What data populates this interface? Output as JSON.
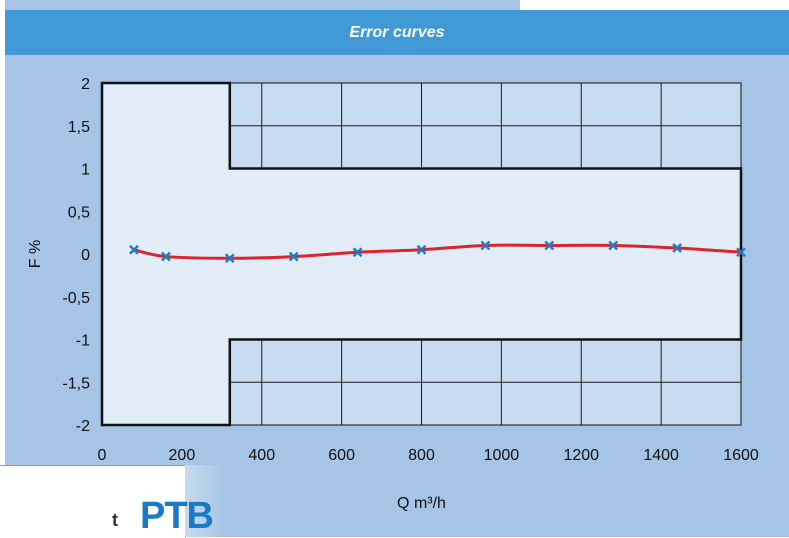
{
  "header": {
    "title": "Error curves"
  },
  "logo": {
    "text": "PTB",
    "cut_text": "t"
  },
  "colors": {
    "panel_bg": "#a5c4e6",
    "header_bg": "#4199d6",
    "plot_bg": "#c6dbf0",
    "tolerance_fill": "#e2ecf7",
    "curve": "#d9262c",
    "marker": "#1f7cc4"
  },
  "chart_data": {
    "type": "line",
    "title": "Error curves",
    "xlabel": "Q m³/h",
    "ylabel": "F %",
    "xlim": [
      0,
      1600
    ],
    "ylim": [
      -2,
      2
    ],
    "x_ticks": [
      0,
      200,
      400,
      600,
      800,
      1000,
      1200,
      1400,
      1600
    ],
    "x_tick_labels": [
      "0",
      "200",
      "400",
      "600",
      "800",
      "1000",
      "1200",
      "1400",
      "1600"
    ],
    "y_ticks": [
      2,
      1.5,
      1,
      0.5,
      0,
      -0.5,
      -1,
      -1.5,
      -2
    ],
    "y_tick_labels": [
      "2",
      "1,5",
      "1",
      "0,5",
      "0",
      "-0,5",
      "-1",
      "-1,5",
      "-2"
    ],
    "grid": true,
    "tolerance_limits": {
      "qt": 320,
      "below_qt": 2,
      "above_qt": 1
    },
    "series": [
      {
        "x": [
          80,
          160,
          320,
          480,
          640,
          800,
          960,
          1120,
          1280,
          1440,
          1600
        ],
        "y": [
          0.05,
          -0.03,
          -0.05,
          -0.03,
          0.02,
          0.05,
          0.1,
          0.1,
          0.1,
          0.07,
          0.02
        ]
      }
    ]
  }
}
